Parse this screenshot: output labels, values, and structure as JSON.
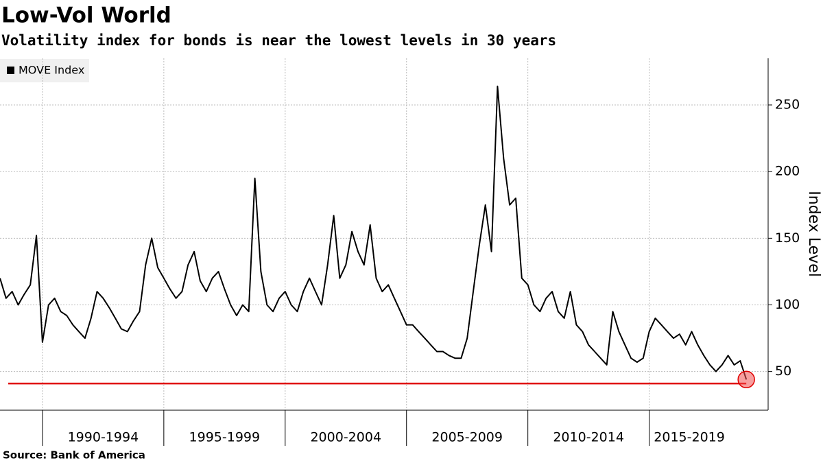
{
  "chart_data": {
    "type": "line",
    "title": "Low-Vol World",
    "subtitle": "Volatility index for bonds is near the lowest levels in 30 years",
    "source": "Source:  Bank of America",
    "y_axis_label": "Index Level",
    "series": [
      {
        "name": "MOVE Index",
        "color": "#000000",
        "x": [
          1988.25,
          1988.5,
          1988.75,
          1989,
          1989.25,
          1989.5,
          1989.75,
          1990,
          1990.25,
          1990.5,
          1990.75,
          1991,
          1991.25,
          1991.5,
          1991.75,
          1992,
          1992.25,
          1992.5,
          1992.75,
          1993,
          1993.25,
          1993.5,
          1993.75,
          1994,
          1994.25,
          1994.5,
          1994.75,
          1995,
          1995.25,
          1995.5,
          1995.75,
          1996,
          1996.25,
          1996.5,
          1996.75,
          1997,
          1997.25,
          1997.5,
          1997.75,
          1998,
          1998.25,
          1998.5,
          1998.75,
          1999,
          1999.25,
          1999.5,
          1999.75,
          2000,
          2000.25,
          2000.5,
          2000.75,
          2001,
          2001.25,
          2001.5,
          2001.75,
          2002,
          2002.25,
          2002.5,
          2002.75,
          2003,
          2003.25,
          2003.5,
          2003.75,
          2004,
          2004.25,
          2004.5,
          2004.75,
          2005,
          2005.25,
          2005.5,
          2005.75,
          2006,
          2006.25,
          2006.5,
          2006.75,
          2007,
          2007.25,
          2007.5,
          2007.75,
          2008,
          2008.25,
          2008.5,
          2008.75,
          2009,
          2009.25,
          2009.5,
          2009.75,
          2010,
          2010.25,
          2010.5,
          2010.75,
          2011,
          2011.25,
          2011.5,
          2011.75,
          2012,
          2012.25,
          2012.5,
          2012.75,
          2013,
          2013.25,
          2013.5,
          2013.75,
          2014,
          2014.25,
          2014.5,
          2014.75,
          2015,
          2015.25,
          2015.5,
          2015.75,
          2016,
          2016.25,
          2016.5,
          2016.75,
          2017,
          2017.25,
          2017.5,
          2017.75,
          2018,
          2018.25,
          2018.5,
          2018.75,
          2019
        ],
        "values": [
          120,
          105,
          110,
          100,
          108,
          115,
          152,
          72,
          100,
          105,
          95,
          92,
          85,
          80,
          75,
          90,
          110,
          105,
          98,
          90,
          82,
          80,
          88,
          95,
          130,
          150,
          128,
          120,
          112,
          105,
          110,
          130,
          140,
          118,
          110,
          120,
          125,
          112,
          100,
          92,
          100,
          95,
          195,
          125,
          100,
          95,
          105,
          110,
          100,
          95,
          110,
          120,
          110,
          100,
          130,
          167,
          120,
          130,
          155,
          140,
          130,
          160,
          120,
          110,
          115,
          105,
          95,
          85,
          85,
          80,
          75,
          70,
          65,
          65,
          62,
          60,
          60,
          75,
          110,
          145,
          175,
          140,
          264,
          210,
          175,
          180,
          120,
          115,
          100,
          95,
          105,
          110,
          95,
          90,
          110,
          85,
          80,
          70,
          65,
          60,
          55,
          95,
          80,
          70,
          60,
          57,
          60,
          80,
          90,
          85,
          80,
          75,
          78,
          70,
          80,
          70,
          62,
          55,
          50,
          55,
          62,
          55,
          58,
          44
        ]
      }
    ],
    "reference_line": {
      "value": 41,
      "color": "#e00000"
    },
    "highlight_last": true,
    "xlim": [
      1988.25,
      2019.9
    ],
    "xticks": [
      1990,
      1995,
      2000,
      2005,
      2010,
      2015,
      2020
    ],
    "period_labels": [
      "1990-1994",
      "1995-1999",
      "2000-2004",
      "2005-2009",
      "2010-2014",
      "2015-2019"
    ],
    "ylim": [
      21,
      285
    ],
    "yticks": [
      50,
      100,
      150,
      200,
      250
    ],
    "grid": true
  }
}
